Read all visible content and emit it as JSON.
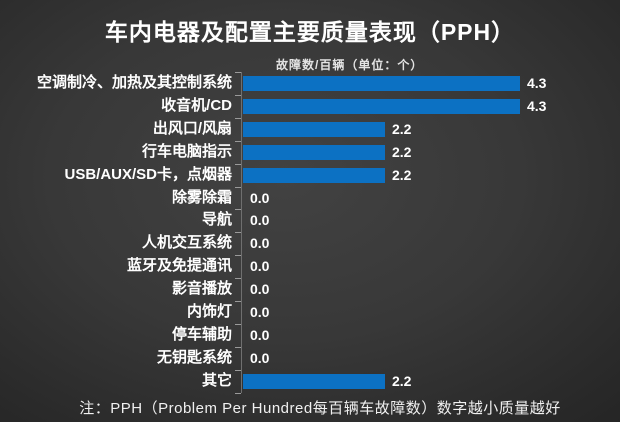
{
  "title": "车内电器及配置主要质量表现（PPH）",
  "subtitle": "故障数/百辆（单位：个）",
  "note": "注：PPH（Problem Per Hundred每百辆车故障数）数字越小质量越好",
  "colors": {
    "bar": "#0c71c3",
    "background_center": "#424242",
    "background_edge": "#232323",
    "axis": "#6f6f6f",
    "tick": "#9a9a9a",
    "text": "#ffffff"
  },
  "chart_data": {
    "type": "bar",
    "orientation": "horizontal",
    "title": "车内电器及配置主要质量表现（PPH）",
    "xlabel": "故障数/百辆（单位：个）",
    "ylabel": "",
    "xlim": [
      0,
      4.3
    ],
    "grid": false,
    "legend": "none",
    "categories": [
      "空调制冷、加热及其控制系统",
      "收音机/CD",
      "出风口/风扇",
      "行车电脑指示",
      "USB/AUX/SD卡，点烟器",
      "除雾除霜",
      "导航",
      "人机交互系统",
      "蓝牙及免提通讯",
      "影音播放",
      "内饰灯",
      "停车辅助",
      "无钥匙系统",
      "其它"
    ],
    "values": [
      4.3,
      4.3,
      2.2,
      2.2,
      2.2,
      0.0,
      0.0,
      0.0,
      0.0,
      0.0,
      0.0,
      0.0,
      0.0,
      2.2
    ],
    "value_labels": [
      "4.3",
      "4.3",
      "2.2",
      "2.2",
      "2.2",
      "0.0",
      "0.0",
      "0.0",
      "0.0",
      "0.0",
      "0.0",
      "0.0",
      "0.0",
      "2.2"
    ]
  }
}
